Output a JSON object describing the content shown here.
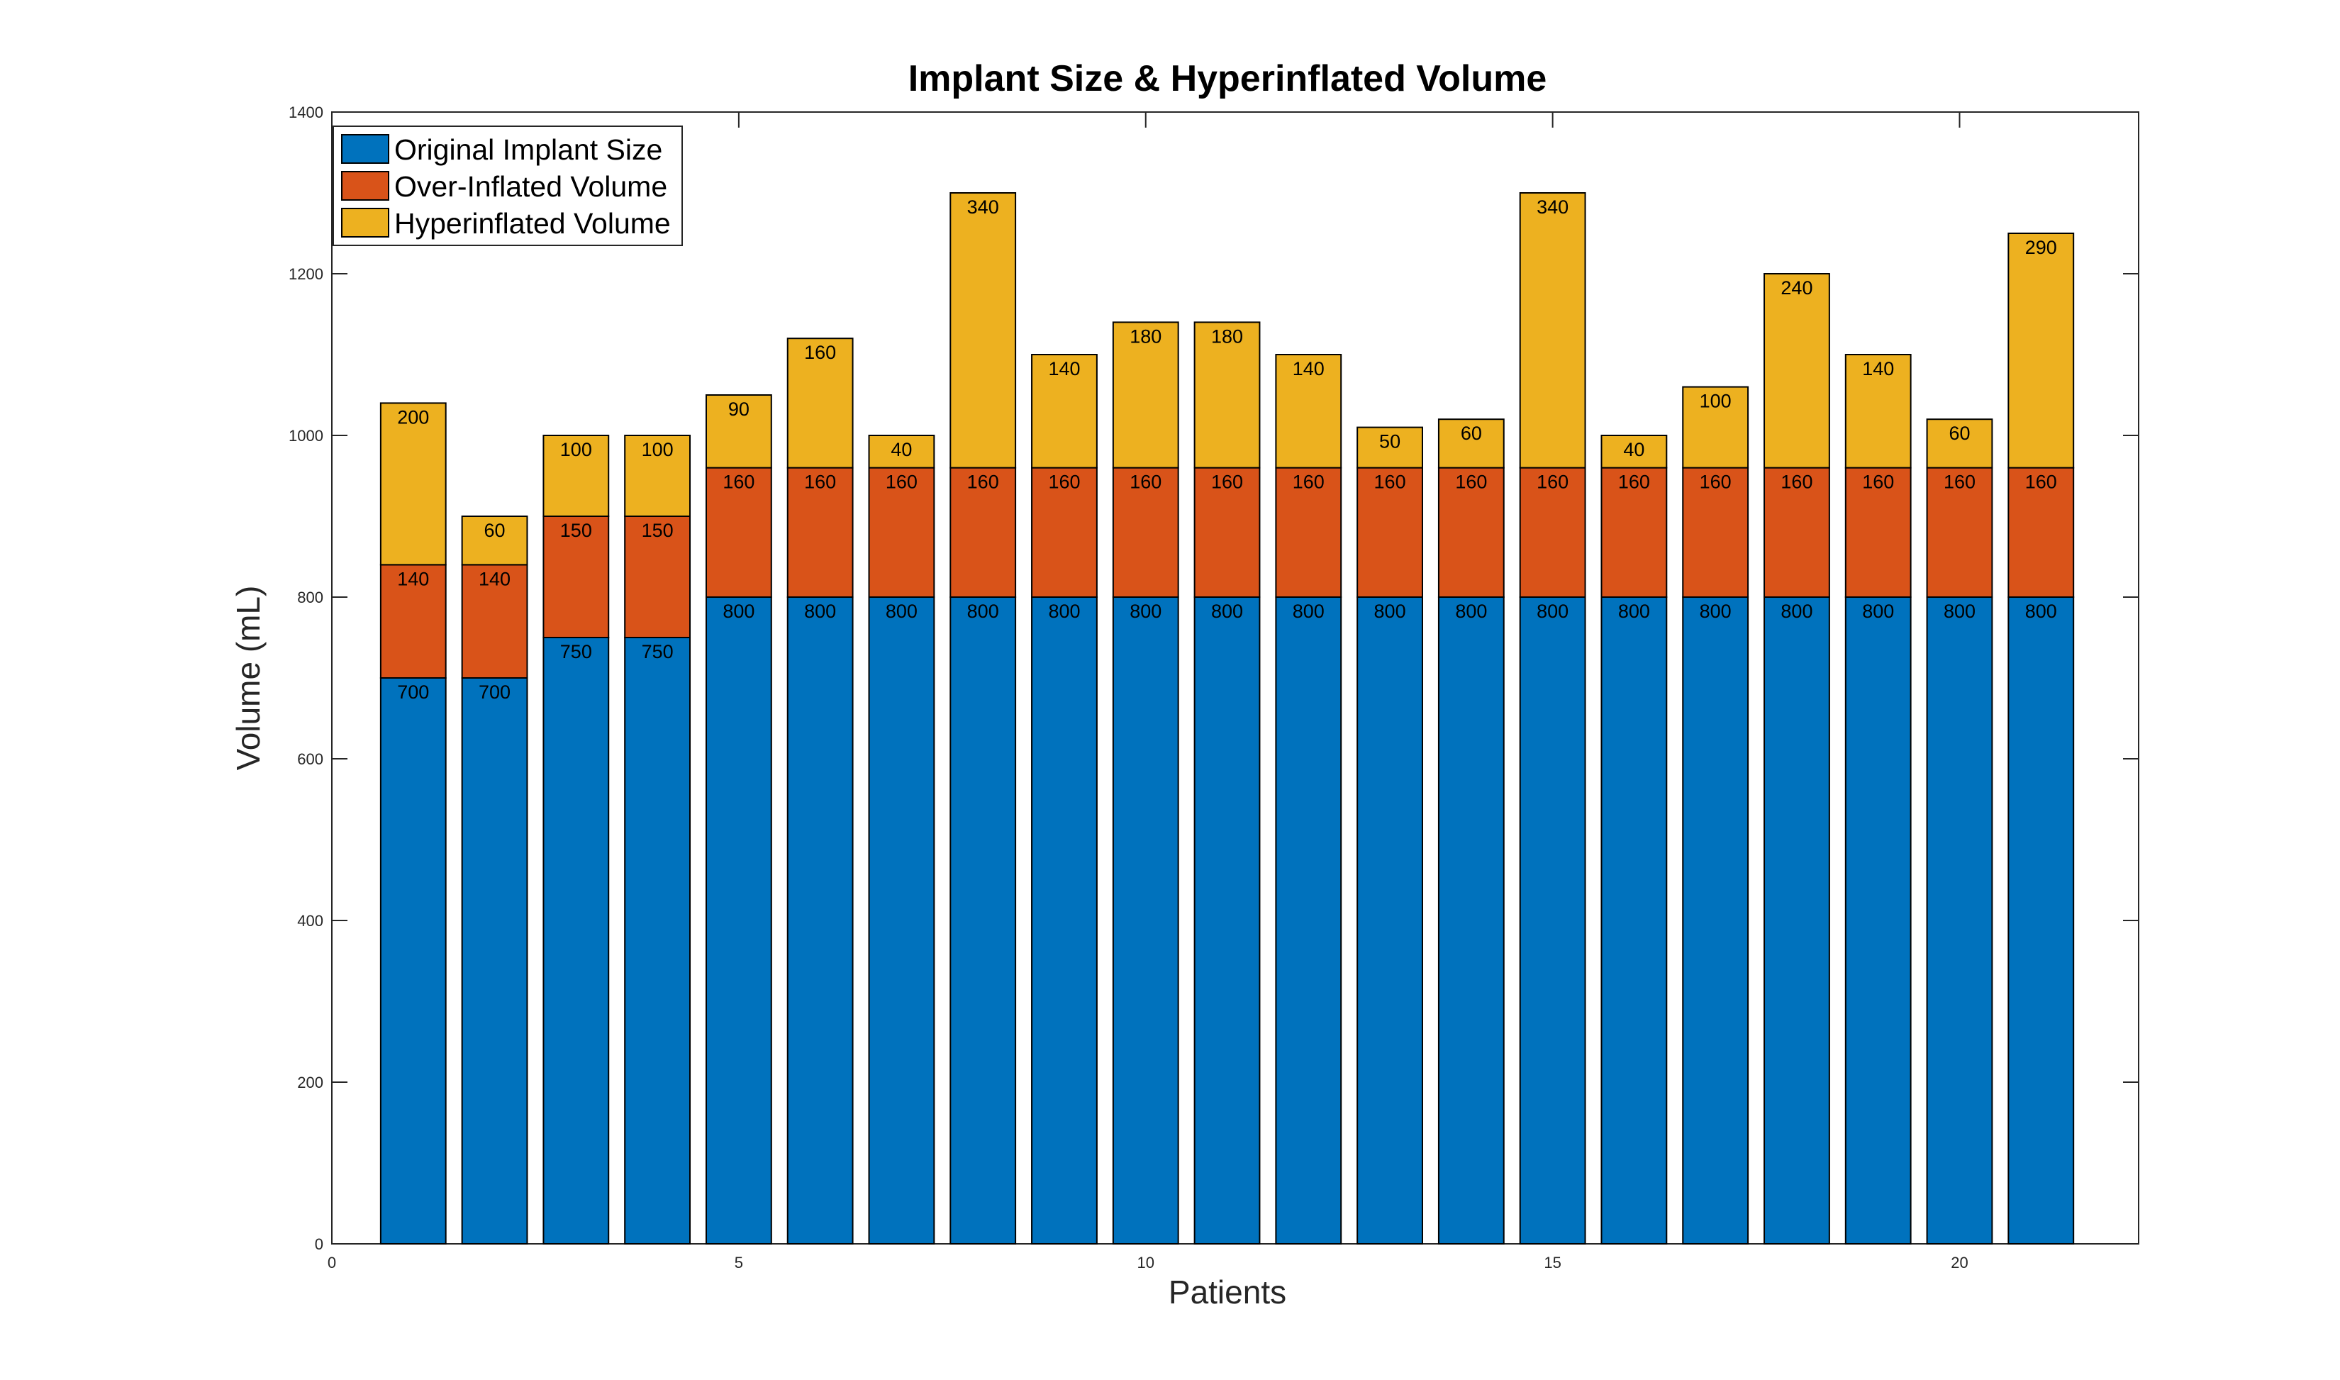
{
  "chart_data": {
    "type": "bar",
    "stacked": true,
    "title": "Implant Size & Hyperinflated Volume",
    "xlabel": "Patients",
    "ylabel": "Volume (mL)",
    "xlim": [
      0,
      22.2
    ],
    "ylim": [
      0,
      1400
    ],
    "x_ticks": [
      "0",
      "5",
      "10",
      "15",
      "20"
    ],
    "y_ticks": [
      "0",
      "200",
      "400",
      "600",
      "800",
      "1000",
      "1200",
      "1400"
    ],
    "legend_position": "top-left",
    "categories": [
      "1",
      "2",
      "3",
      "4",
      "5",
      "6",
      "7",
      "8",
      "9",
      "10",
      "11",
      "12",
      "13",
      "14",
      "15",
      "16",
      "17",
      "18",
      "19",
      "20",
      "21"
    ],
    "series": [
      {
        "name": "Original Implant Size",
        "color": "#0072BD",
        "values": [
          700,
          700,
          750,
          750,
          800,
          800,
          800,
          800,
          800,
          800,
          800,
          800,
          800,
          800,
          800,
          800,
          800,
          800,
          800,
          800,
          800
        ]
      },
      {
        "name": "Over-Inflated Volume",
        "color": "#D95319",
        "values": [
          140,
          140,
          150,
          150,
          160,
          160,
          160,
          160,
          160,
          160,
          160,
          160,
          160,
          160,
          160,
          160,
          160,
          160,
          160,
          160,
          160
        ]
      },
      {
        "name": "Hyperinflated Volume",
        "color": "#EDB120",
        "values": [
          200,
          60,
          100,
          100,
          90,
          160,
          40,
          340,
          140,
          180,
          180,
          140,
          50,
          60,
          340,
          40,
          100,
          240,
          140,
          60,
          290
        ]
      }
    ]
  }
}
